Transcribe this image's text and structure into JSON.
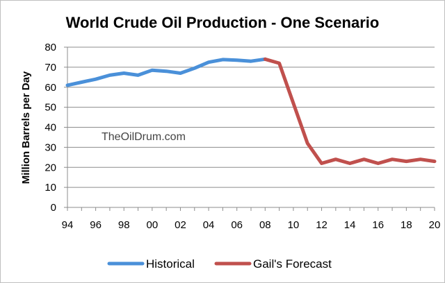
{
  "chart_data": {
    "type": "line",
    "title": "World Crude Oil Production - One Scenario",
    "ylabel": "Million Barrels per Day",
    "xlabel": "",
    "ylim": [
      0,
      80
    ],
    "xlim": [
      1994,
      2020
    ],
    "yticks": [
      0,
      10,
      20,
      30,
      40,
      50,
      60,
      70,
      80
    ],
    "xticks": [
      {
        "year": 1994,
        "label": "94"
      },
      {
        "year": 1996,
        "label": "96"
      },
      {
        "year": 1998,
        "label": "98"
      },
      {
        "year": 2000,
        "label": "00"
      },
      {
        "year": 2002,
        "label": "02"
      },
      {
        "year": 2004,
        "label": "04"
      },
      {
        "year": 2006,
        "label": "06"
      },
      {
        "year": 2008,
        "label": "08"
      },
      {
        "year": 2010,
        "label": "10"
      },
      {
        "year": 2012,
        "label": "12"
      },
      {
        "year": 2014,
        "label": "14"
      },
      {
        "year": 2016,
        "label": "16"
      },
      {
        "year": 2018,
        "label": "18"
      },
      {
        "year": 2020,
        "label": "20"
      }
    ],
    "grid": "horizontal",
    "legend_position": "bottom",
    "annotation": "TheOilDrum.com",
    "series": [
      {
        "name": "Historical",
        "color": "#4a90d9",
        "x": [
          1994,
          1995,
          1996,
          1997,
          1998,
          1999,
          2000,
          2001,
          2002,
          2003,
          2004,
          2005,
          2006,
          2007,
          2008
        ],
        "y": [
          61,
          62.5,
          64,
          66,
          67,
          66,
          68.5,
          68,
          67,
          69.5,
          72.5,
          73.8,
          73.5,
          73,
          74
        ]
      },
      {
        "name": "Gail's Forecast",
        "color": "#c0504d",
        "x": [
          2008,
          2009,
          2010,
          2011,
          2012,
          2013,
          2014,
          2015,
          2016,
          2017,
          2018,
          2019,
          2020
        ],
        "y": [
          74,
          72,
          52,
          32,
          22,
          24,
          22,
          24,
          22,
          24,
          23,
          24,
          23
        ]
      }
    ]
  }
}
